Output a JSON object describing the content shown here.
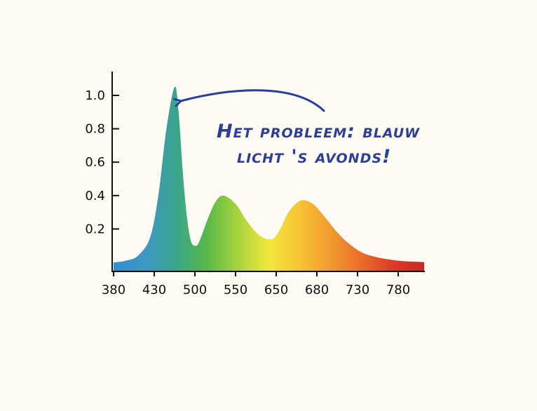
{
  "chart_data": {
    "type": "area",
    "title": "",
    "xlabel": "",
    "ylabel": "",
    "x_tick_labels": [
      "380",
      "430",
      "500",
      "550",
      "650",
      "680",
      "730",
      "780"
    ],
    "y_ticks": [
      1.0,
      0.8,
      0.6,
      0.4,
      0.2
    ],
    "y_tick_labels": [
      "1.0",
      "0.8",
      "0.6",
      "0.4",
      "0.2"
    ],
    "x_tick_index": [
      0,
      1,
      2,
      3,
      4,
      5,
      6,
      7
    ],
    "ylim": [
      -0.05,
      1.2
    ],
    "x": [
      0,
      0.3,
      0.6,
      0.9,
      1.1,
      1.3,
      1.5,
      1.6,
      1.7,
      1.8,
      1.9,
      2.0,
      2.1,
      2.3,
      2.5,
      2.7,
      3.0,
      3.3,
      3.6,
      3.9,
      4.1,
      4.3,
      4.6,
      4.9,
      5.2,
      5.5,
      5.8,
      6.1,
      6.4,
      6.7,
      7.0,
      7.3,
      7.6,
      8.0,
      8.3
    ],
    "values": [
      0.0,
      0.01,
      0.04,
      0.15,
      0.4,
      0.8,
      1.05,
      0.9,
      0.55,
      0.28,
      0.13,
      0.1,
      0.12,
      0.25,
      0.36,
      0.4,
      0.35,
      0.24,
      0.16,
      0.14,
      0.2,
      0.3,
      0.37,
      0.35,
      0.27,
      0.18,
      0.11,
      0.06,
      0.035,
      0.02,
      0.01,
      0.005,
      0.002,
      0.0,
      0.0
    ],
    "series_color_gradient": [
      "#2f8fd0",
      "#3f97c6",
      "#3aa48a",
      "#58b847",
      "#a8d33c",
      "#f2e83b",
      "#f7c233",
      "#f29a2e",
      "#ea6a2a",
      "#dc3a26",
      "#c9281f"
    ],
    "grid": false,
    "legend": "none",
    "annotation": {
      "text_lines": [
        "Het probleem: blauw",
        "licht 's avonds!"
      ],
      "color": "#2a3f9a"
    },
    "axis_color": "#111111"
  }
}
